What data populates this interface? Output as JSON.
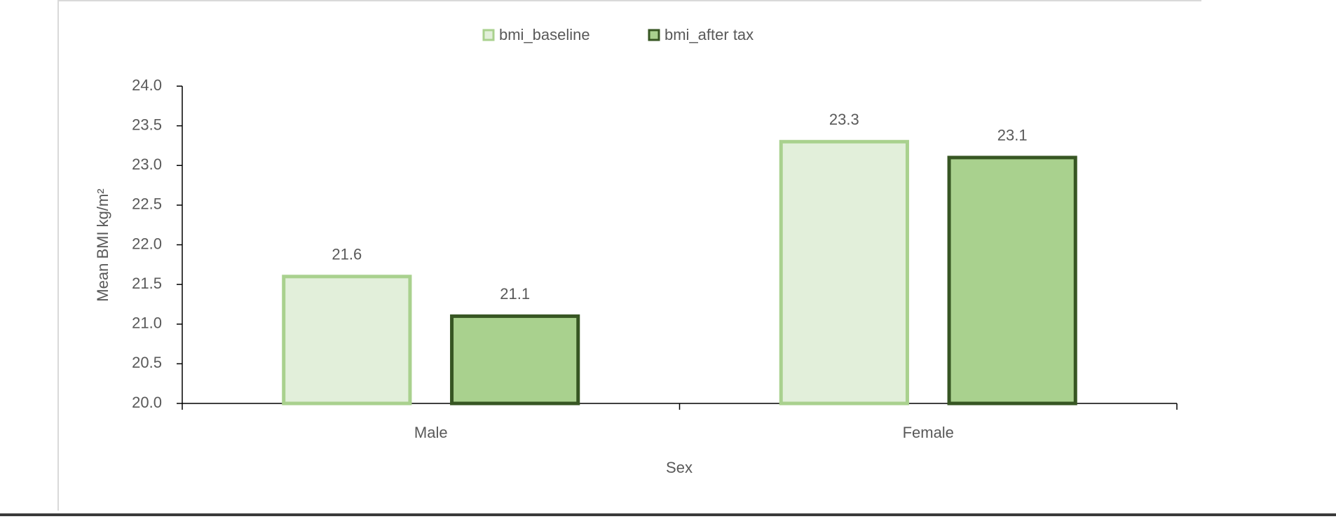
{
  "chart_data": {
    "type": "bar",
    "xlabel": "Sex",
    "ylabel": "Mean BMI kg/m²",
    "categories": [
      "Male",
      "Female"
    ],
    "series": [
      {
        "name": "bmi_baseline",
        "color": "#e2efda",
        "edgecolor": "#a9d18e",
        "values": [
          21.6,
          23.3
        ]
      },
      {
        "name": "bmi_after tax",
        "color": "#a9d18e",
        "edgecolor": "#375623",
        "values": [
          21.1,
          23.1
        ]
      }
    ],
    "ylim": [
      20.0,
      24.0
    ],
    "yticks": [
      {
        "value": 20,
        "label": "20.0"
      },
      20.5,
      {
        "value": 21,
        "label": "21.0"
      },
      21.5,
      {
        "value": 22,
        "label": "22.0"
      },
      22.5,
      {
        "value": 23,
        "label": "23.0"
      },
      23.5,
      {
        "value": 24,
        "label": "24.0"
      }
    ],
    "legend": "top",
    "grid": false
  }
}
